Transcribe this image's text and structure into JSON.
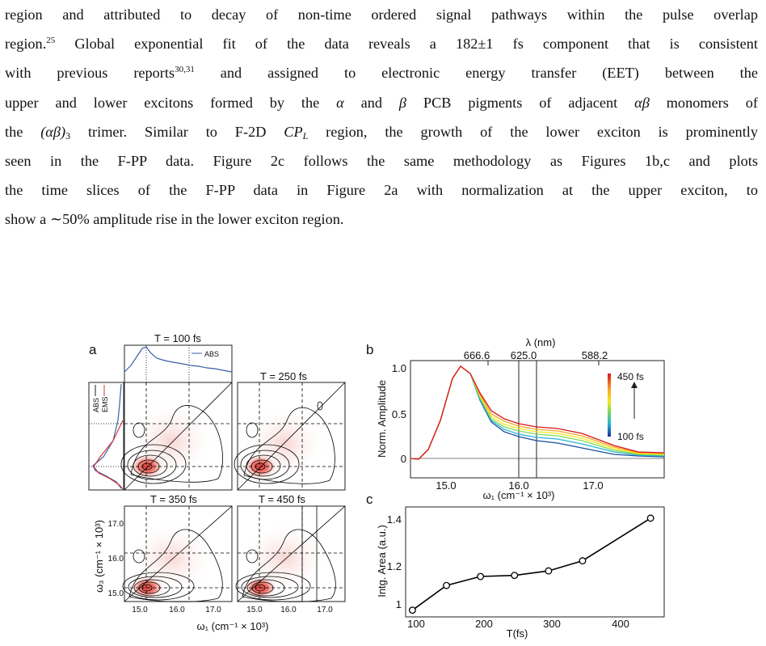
{
  "paragraph": {
    "l1": {
      "a": "region and attributed to decay of non-time ordered signal pathways within the pulse overlap"
    },
    "l2": {
      "a": "region.",
      "ref": "25",
      "b": " Global exponential fit of the data reveals a 182±1 fs component that is consistent"
    },
    "l3": {
      "a": "with previous reports",
      "ref": "30,31",
      "b": " and assigned to electronic energy transfer (EET) between the"
    },
    "l4": {
      "a": "upper and lower excitons formed by the ",
      "alpha": "α",
      "b": " and ",
      "beta": "β",
      "c": " PCB pigments of adjacent ",
      "ab": "αβ",
      "d": " monomers of"
    },
    "l5": {
      "a": "the ",
      "abg": "(αβ)",
      "sub3": "3",
      "b": " trimer. Similar to F-2D ",
      "cp": "CP",
      "cpsub": "L",
      "c": " region, the growth of the lower exciton is prominently"
    },
    "l6": {
      "a": "seen in the F-PP data.  Figure 2c follows the same methodology as Figures 1b,c and plots"
    },
    "l7": {
      "a": "the time slices of the F-PP data in Figure 2a with normalization at the upper exciton, to"
    },
    "l8": {
      "a": "show a ∼50% amplitude rise in the lower exciton region."
    }
  },
  "figure": {
    "panel_a": {
      "letter": "a",
      "titles": [
        "T = 100 fs",
        "T = 250 fs",
        "T = 350 fs",
        "T = 450 fs"
      ],
      "abs_legend": "ABS",
      "side_legend": [
        "ABS",
        "EMS"
      ],
      "x_ticks": [
        "15.0",
        "16.0",
        "17.0"
      ],
      "y_ticks": [
        "17.0",
        "16.0",
        "15.0"
      ],
      "xlabel": "ω₁ (cm⁻¹ × 10³)",
      "ylabel": "ω₃ (cm⁻¹ × 10³)"
    },
    "panel_b": {
      "letter": "b",
      "top_axis_label": "λ (nm)",
      "top_ticks": [
        "666.6",
        "625.0",
        "588.2"
      ],
      "y_ticks": [
        "1.0",
        "0.5",
        "0"
      ],
      "x_ticks": [
        "15.0",
        "16.0",
        "17.0"
      ],
      "ylabel": "Norm. Amplitude",
      "xlabel": "ω₁ (cm⁻¹ × 10³)",
      "colorbar_top": "450 fs",
      "colorbar_bottom": "100 fs"
    },
    "panel_c": {
      "letter": "c",
      "y_ticks": [
        "1.4",
        "1.2",
        "1"
      ],
      "x_ticks": [
        "100",
        "200",
        "300",
        "400"
      ],
      "ylabel": "Intg. Area (a.u.)",
      "xlabel": "T(fs)"
    }
  },
  "chart_data": {
    "type": "line",
    "xlabel": "T(fs)",
    "ylabel": "Intg. Area (a.u.)",
    "xlim": [
      90,
      470
    ],
    "ylim": [
      0.97,
      1.46
    ],
    "x": [
      100,
      150,
      200,
      250,
      300,
      350,
      450
    ],
    "values": [
      1.0,
      1.11,
      1.15,
      1.155,
      1.175,
      1.22,
      1.41
    ],
    "grid": false
  },
  "colors": {
    "contour": "#000000",
    "peak": "#e8403a",
    "abs": "#3a5fa8",
    "ems": "#d73838"
  }
}
